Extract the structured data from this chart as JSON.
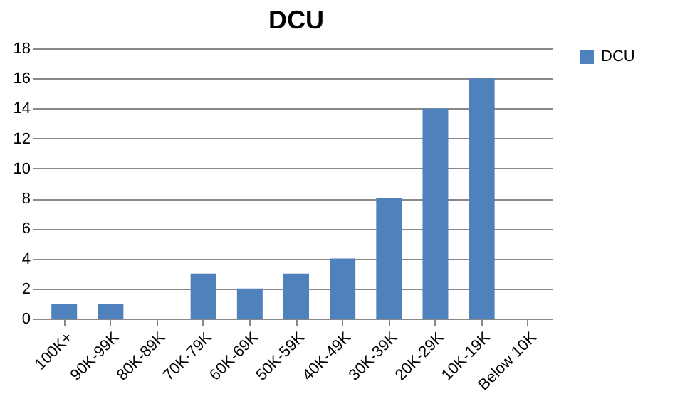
{
  "chart_data": {
    "type": "bar",
    "title": "DCU",
    "categories": [
      "100K+",
      "90K-99K",
      "80K-89K",
      "70K-79K",
      "60K-69K",
      "50K-59K",
      "40K-49K",
      "30K-39K",
      "20K-29K",
      "10K-19K",
      "Below 10K"
    ],
    "series": [
      {
        "name": "DCU",
        "color": "#4f81bd",
        "values": [
          1,
          1,
          0,
          3,
          2,
          3,
          4,
          8,
          14,
          16,
          0
        ]
      }
    ],
    "ylim": [
      0,
      18
    ],
    "yticks": [
      0,
      2,
      4,
      6,
      8,
      10,
      12,
      14,
      16,
      18
    ],
    "grid": "y",
    "legend": "right"
  }
}
